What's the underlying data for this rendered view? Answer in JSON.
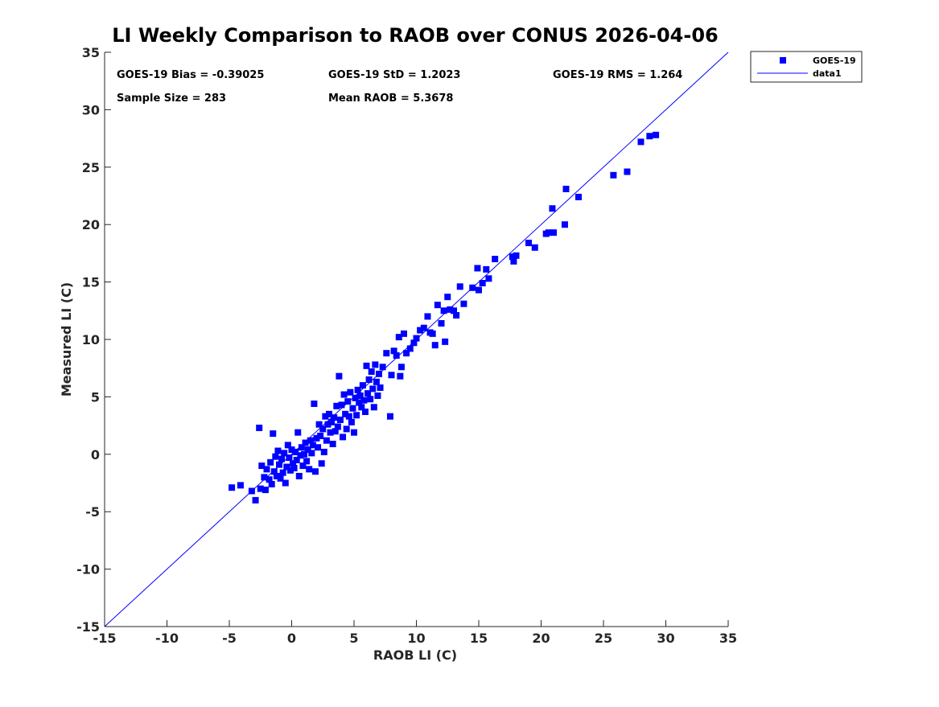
{
  "chart_data": {
    "type": "scatter",
    "title": "LI Weekly Comparison to RAOB over CONUS 2026-04-06",
    "xlabel": "RAOB LI (C)",
    "ylabel": "Measured LI (C)",
    "xlim": [
      -15,
      35
    ],
    "ylim": [
      -15,
      35
    ],
    "xticks": [
      -15,
      -10,
      -5,
      0,
      5,
      10,
      15,
      20,
      25,
      30,
      35
    ],
    "yticks": [
      -15,
      -10,
      -5,
      0,
      5,
      10,
      15,
      20,
      25,
      30,
      35
    ],
    "grid": false,
    "legend_position": "outside-top-right",
    "marker_color": "#0000ff",
    "line_color": "#0000ff",
    "annotations": {
      "bias": "GOES-19 Bias = -0.39025",
      "std": "GOES-19 StD = 1.2023",
      "rms": "GOES-19 RMS = 1.264",
      "sample_size": "Sample Size = 283",
      "mean_raob": "Mean RAOB = 5.3678"
    },
    "series": [
      {
        "name": "GOES-19",
        "kind": "scatter",
        "points": [
          [
            -4.8,
            -2.9
          ],
          [
            -4.1,
            -2.7
          ],
          [
            -3.2,
            -3.2
          ],
          [
            -2.9,
            -4.0
          ],
          [
            -2.6,
            2.3
          ],
          [
            -2.5,
            -3.0
          ],
          [
            -2.4,
            -1.0
          ],
          [
            -2.2,
            -2.0
          ],
          [
            -2.1,
            -3.1
          ],
          [
            -2.0,
            -1.3
          ],
          [
            -1.8,
            -2.2
          ],
          [
            -1.7,
            -0.7
          ],
          [
            -1.6,
            -2.6
          ],
          [
            -1.5,
            1.8
          ],
          [
            -1.4,
            -1.5
          ],
          [
            -1.3,
            -0.2
          ],
          [
            -1.2,
            -1.9
          ],
          [
            -1.1,
            0.3
          ],
          [
            -1.0,
            -0.9
          ],
          [
            -0.9,
            -2.1
          ],
          [
            -0.8,
            -0.4
          ],
          [
            -0.7,
            -1.6
          ],
          [
            -0.6,
            0.1
          ],
          [
            -0.5,
            -2.5
          ],
          [
            -0.4,
            -1.1
          ],
          [
            -0.3,
            0.8
          ],
          [
            -0.2,
            -0.3
          ],
          [
            -0.1,
            -1.4
          ],
          [
            0.0,
            0.4
          ],
          [
            0.1,
            -0.8
          ],
          [
            0.2,
            -1.2
          ],
          [
            0.3,
            0.2
          ],
          [
            0.4,
            -0.5
          ],
          [
            0.5,
            1.9
          ],
          [
            0.6,
            -1.9
          ],
          [
            0.7,
            -0.1
          ],
          [
            0.8,
            0.6
          ],
          [
            0.9,
            -1.0
          ],
          [
            1.0,
            0.0
          ],
          [
            1.1,
            1.0
          ],
          [
            1.2,
            -0.6
          ],
          [
            1.3,
            0.4
          ],
          [
            1.4,
            -1.3
          ],
          [
            1.5,
            1.2
          ],
          [
            1.6,
            0.1
          ],
          [
            1.7,
            0.8
          ],
          [
            1.8,
            4.4
          ],
          [
            1.9,
            -1.5
          ],
          [
            2.0,
            1.4
          ],
          [
            2.1,
            0.6
          ],
          [
            2.2,
            2.6
          ],
          [
            2.3,
            1.6
          ],
          [
            2.4,
            -0.8
          ],
          [
            2.5,
            2.2
          ],
          [
            2.6,
            0.2
          ],
          [
            2.7,
            3.3
          ],
          [
            2.8,
            1.2
          ],
          [
            2.9,
            2.6
          ],
          [
            3.0,
            3.5
          ],
          [
            3.1,
            1.9
          ],
          [
            3.2,
            2.8
          ],
          [
            3.3,
            0.9
          ],
          [
            3.4,
            3.2
          ],
          [
            3.5,
            2.0
          ],
          [
            3.6,
            4.2
          ],
          [
            3.7,
            2.4
          ],
          [
            3.8,
            6.8
          ],
          [
            3.9,
            3.0
          ],
          [
            4.0,
            4.3
          ],
          [
            4.1,
            1.5
          ],
          [
            4.2,
            5.2
          ],
          [
            4.3,
            3.5
          ],
          [
            4.4,
            2.2
          ],
          [
            4.5,
            4.6
          ],
          [
            4.6,
            3.3
          ],
          [
            4.7,
            5.4
          ],
          [
            4.8,
            2.8
          ],
          [
            4.9,
            4.0
          ],
          [
            5.0,
            1.9
          ],
          [
            5.1,
            4.9
          ],
          [
            5.2,
            3.4
          ],
          [
            5.3,
            5.6
          ],
          [
            5.4,
            4.5
          ],
          [
            5.5,
            5.1
          ],
          [
            5.6,
            4.1
          ],
          [
            5.7,
            6.0
          ],
          [
            5.8,
            4.7
          ],
          [
            5.9,
            3.7
          ],
          [
            6.0,
            7.7
          ],
          [
            6.1,
            5.3
          ],
          [
            6.2,
            6.5
          ],
          [
            6.3,
            4.8
          ],
          [
            6.4,
            7.2
          ],
          [
            6.5,
            5.7
          ],
          [
            6.6,
            4.1
          ],
          [
            6.7,
            7.8
          ],
          [
            6.8,
            6.3
          ],
          [
            6.9,
            5.1
          ],
          [
            7.0,
            7.0
          ],
          [
            7.1,
            5.8
          ],
          [
            7.3,
            7.6
          ],
          [
            7.6,
            8.8
          ],
          [
            7.9,
            3.3
          ],
          [
            8.0,
            6.9
          ],
          [
            8.2,
            9.0
          ],
          [
            8.4,
            8.6
          ],
          [
            8.6,
            10.2
          ],
          [
            8.7,
            6.8
          ],
          [
            8.8,
            7.6
          ],
          [
            9.0,
            10.5
          ],
          [
            9.2,
            8.8
          ],
          [
            9.5,
            9.2
          ],
          [
            9.8,
            9.7
          ],
          [
            10.0,
            10.1
          ],
          [
            10.3,
            10.8
          ],
          [
            10.6,
            11.0
          ],
          [
            10.9,
            12.0
          ],
          [
            11.1,
            10.6
          ],
          [
            11.3,
            10.5
          ],
          [
            11.5,
            9.5
          ],
          [
            11.7,
            13.0
          ],
          [
            12.0,
            11.4
          ],
          [
            12.2,
            12.5
          ],
          [
            12.3,
            9.8
          ],
          [
            12.5,
            13.7
          ],
          [
            12.7,
            12.6
          ],
          [
            13.0,
            12.5
          ],
          [
            13.2,
            12.1
          ],
          [
            13.5,
            14.6
          ],
          [
            13.8,
            13.1
          ],
          [
            14.5,
            14.5
          ],
          [
            14.9,
            16.2
          ],
          [
            15.0,
            14.3
          ],
          [
            15.3,
            14.9
          ],
          [
            15.6,
            16.1
          ],
          [
            15.8,
            15.3
          ],
          [
            16.3,
            17.0
          ],
          [
            17.7,
            17.2
          ],
          [
            17.8,
            16.8
          ],
          [
            18.0,
            17.3
          ],
          [
            19.0,
            18.4
          ],
          [
            19.5,
            18.0
          ],
          [
            20.4,
            19.2
          ],
          [
            20.6,
            19.3
          ],
          [
            20.9,
            21.4
          ],
          [
            21.0,
            19.3
          ],
          [
            21.9,
            20.0
          ],
          [
            22.0,
            23.1
          ],
          [
            23.0,
            22.4
          ],
          [
            25.8,
            24.3
          ],
          [
            26.9,
            24.6
          ],
          [
            28.0,
            27.2
          ],
          [
            28.7,
            27.7
          ],
          [
            29.2,
            27.8
          ]
        ]
      },
      {
        "name": "data1",
        "kind": "line",
        "points": [
          [
            -15,
            -15
          ],
          [
            35,
            35
          ]
        ]
      }
    ]
  }
}
